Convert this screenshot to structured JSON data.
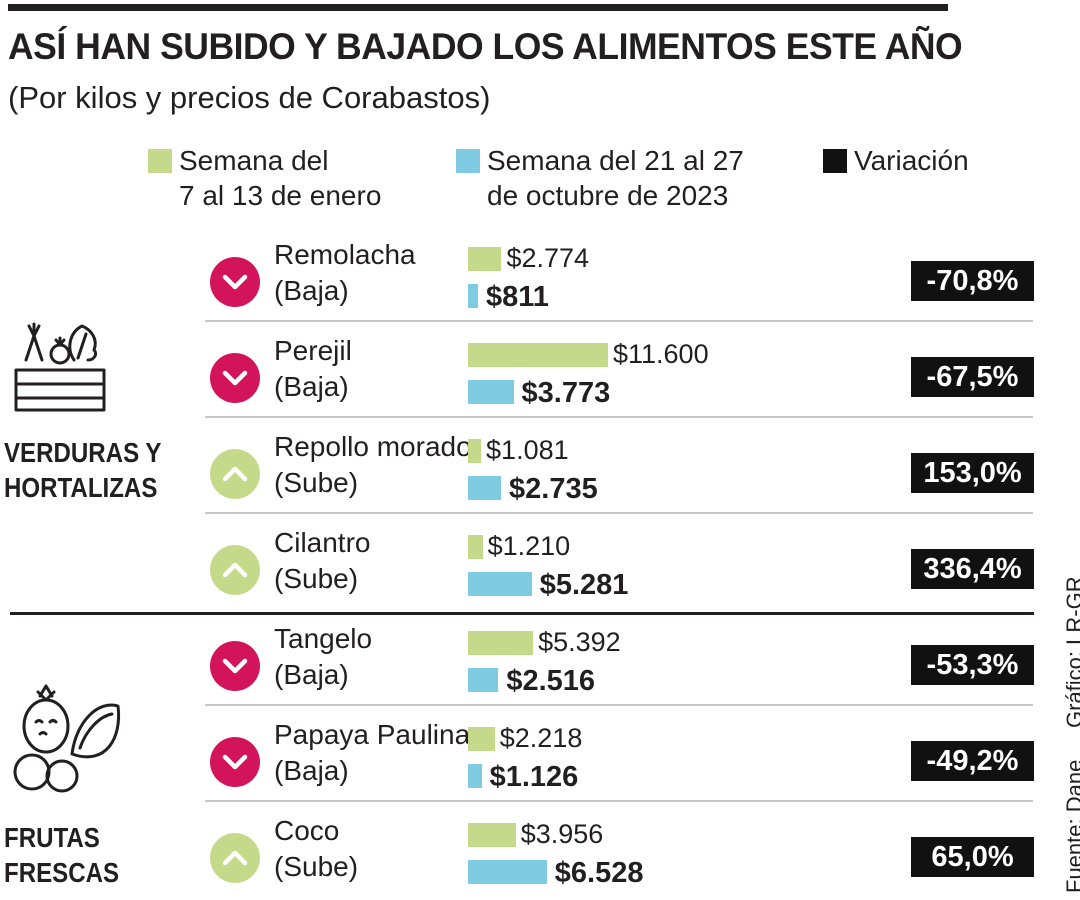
{
  "title": "ASÍ HAN SUBIDO Y BAJADO LOS ALIMENTOS ESTE AÑO",
  "subtitle": "(Por kilos y precios de Corabastos)",
  "legend": {
    "week1_line1": "Semana del",
    "week1_line2": "7 al 13 de enero",
    "week2_line1": "Semana del 21 al 27",
    "week2_line2": "de octubre de 2023",
    "variation": "Variación"
  },
  "colors": {
    "week1": "#c5d98a",
    "week2": "#7ecbe2",
    "down": "#d4145a",
    "up": "#c5d98a",
    "variation_box": "#111111"
  },
  "categories": [
    {
      "line1": "VERDURAS Y",
      "line2": "HORTALIZAS",
      "icon": "vegetable-crate-icon"
    },
    {
      "line1": "FRUTAS",
      "line2": "FRESCAS",
      "icon": "fruits-icon"
    }
  ],
  "source": "Fuente: Dane",
  "credit": "Gráfico: LR-GR",
  "chart_data": {
    "type": "bar",
    "title": "ASÍ HAN SUBIDO Y BAJADO LOS ALIMENTOS ESTE AÑO",
    "subtitle": "(Por kilos y precios de Corabastos)",
    "series_names": [
      "Semana del 7 al 13 de enero",
      "Semana del 21 al 27 de octubre de 2023",
      "Variación"
    ],
    "rows": [
      {
        "category": "VERDURAS Y HORTALIZAS",
        "product": "Remolacha",
        "trend": "(Baja)",
        "direction": "down",
        "old": 2774,
        "new": 811,
        "old_label": "$2.774",
        "new_label": "$811",
        "variation": "-70,8%"
      },
      {
        "category": "VERDURAS Y HORTALIZAS",
        "product": "Perejil",
        "trend": "(Baja)",
        "direction": "down",
        "old": 11600,
        "new": 3773,
        "old_label": "$11.600",
        "new_label": "$3.773",
        "variation": "-67,5%"
      },
      {
        "category": "VERDURAS Y HORTALIZAS",
        "product": "Repollo morado",
        "trend": "(Sube)",
        "direction": "up",
        "old": 1081,
        "new": 2735,
        "old_label": "$1.081",
        "new_label": "$2.735",
        "variation": "153,0%"
      },
      {
        "category": "VERDURAS Y HORTALIZAS",
        "product": "Cilantro",
        "trend": "(Sube)",
        "direction": "up",
        "old": 1210,
        "new": 5281,
        "old_label": "$1.210",
        "new_label": "$5.281",
        "variation": "336,4%"
      },
      {
        "category": "FRUTAS FRESCAS",
        "product": "Tangelo",
        "trend": "(Baja)",
        "direction": "down",
        "old": 5392,
        "new": 2516,
        "old_label": "$5.392",
        "new_label": "$2.516",
        "variation": "-53,3%"
      },
      {
        "category": "FRUTAS FRESCAS",
        "product": "Papaya Paulina",
        "trend": "(Baja)",
        "direction": "down",
        "old": 2218,
        "new": 1126,
        "old_label": "$2.218",
        "new_label": "$1.126",
        "variation": "-49,2%"
      },
      {
        "category": "FRUTAS FRESCAS",
        "product": "Coco",
        "trend": "(Sube)",
        "direction": "up",
        "old": 3956,
        "new": 6528,
        "old_label": "$3.956",
        "new_label": "$6.528",
        "variation": "65,0%"
      }
    ]
  }
}
